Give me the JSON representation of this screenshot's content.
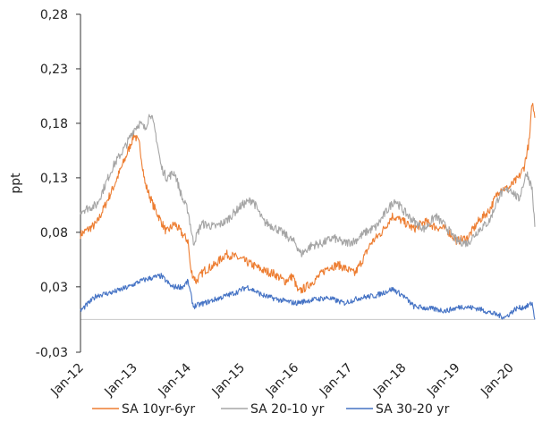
{
  "chart_data": {
    "type": "line",
    "ylabel": "ppt",
    "xlabel": "",
    "ylim": [
      -0.03,
      0.28
    ],
    "yticks": [
      -0.03,
      0.03,
      0.08,
      0.13,
      0.18,
      0.23,
      0.28
    ],
    "ytick_labels": [
      "-0,03",
      "0,03",
      "0,08",
      "0,13",
      "0,18",
      "0,23",
      "0,28"
    ],
    "xlim": [
      2012.0,
      2020.45
    ],
    "xticks": [
      2012,
      2013,
      2014,
      2015,
      2016,
      2017,
      2018,
      2019,
      2020
    ],
    "xtick_labels": [
      "Jan-12",
      "Jan-13",
      "Jan-14",
      "Jan-15",
      "Jan-16",
      "Jan-17",
      "Jan-18",
      "Jan-19",
      "Jan-20"
    ],
    "legend_position": "bottom",
    "baseline": 0,
    "baseline_color": "#c8c8c8",
    "series": [
      {
        "name": "SA 10yr-6yr",
        "color": "#ed7d31",
        "x": [
          2012.0,
          2012.3,
          2012.6,
          2012.85,
          2013.0,
          2013.1,
          2013.2,
          2013.35,
          2013.5,
          2013.6,
          2013.75,
          2013.9,
          2014.0,
          2014.05,
          2014.15,
          2014.3,
          2014.5,
          2014.7,
          2014.85,
          2015.0,
          2015.2,
          2015.4,
          2015.6,
          2015.8,
          2015.95,
          2016.05,
          2016.2,
          2016.4,
          2016.6,
          2016.8,
          2017.0,
          2017.1,
          2017.25,
          2017.4,
          2017.6,
          2017.8,
          2018.0,
          2018.2,
          2018.4,
          2018.6,
          2018.8,
          2019.0,
          2019.2,
          2019.4,
          2019.6,
          2019.8,
          2019.95,
          2020.05,
          2020.15,
          2020.25,
          2020.35,
          2020.4,
          2020.45
        ],
        "y": [
          0.078,
          0.088,
          0.12,
          0.15,
          0.17,
          0.16,
          0.125,
          0.105,
          0.09,
          0.08,
          0.088,
          0.078,
          0.072,
          0.045,
          0.035,
          0.045,
          0.05,
          0.06,
          0.058,
          0.055,
          0.05,
          0.045,
          0.042,
          0.035,
          0.04,
          0.025,
          0.03,
          0.038,
          0.048,
          0.05,
          0.045,
          0.042,
          0.055,
          0.07,
          0.08,
          0.095,
          0.09,
          0.083,
          0.09,
          0.085,
          0.083,
          0.072,
          0.075,
          0.09,
          0.1,
          0.12,
          0.12,
          0.125,
          0.13,
          0.14,
          0.165,
          0.2,
          0.185
        ]
      },
      {
        "name": "SA 20-10 yr",
        "color": "#a5a5a5",
        "x": [
          2012.0,
          2012.3,
          2012.6,
          2012.85,
          2013.0,
          2013.1,
          2013.2,
          2013.3,
          2013.4,
          2013.5,
          2013.6,
          2013.75,
          2013.9,
          2014.0,
          2014.1,
          2014.25,
          2014.5,
          2014.7,
          2014.9,
          2015.0,
          2015.2,
          2015.4,
          2015.6,
          2015.8,
          2016.0,
          2016.1,
          2016.3,
          2016.5,
          2016.7,
          2016.9,
          2017.1,
          2017.3,
          2017.5,
          2017.7,
          2017.85,
          2018.0,
          2018.2,
          2018.4,
          2018.6,
          2018.8,
          2019.0,
          2019.2,
          2019.4,
          2019.6,
          2019.8,
          2020.0,
          2020.15,
          2020.3,
          2020.4,
          2020.45
        ],
        "y": [
          0.1,
          0.105,
          0.14,
          0.16,
          0.175,
          0.18,
          0.175,
          0.19,
          0.17,
          0.14,
          0.13,
          0.135,
          0.11,
          0.1,
          0.07,
          0.088,
          0.085,
          0.09,
          0.1,
          0.105,
          0.11,
          0.09,
          0.085,
          0.078,
          0.07,
          0.06,
          0.068,
          0.07,
          0.075,
          0.07,
          0.072,
          0.08,
          0.085,
          0.1,
          0.11,
          0.1,
          0.09,
          0.083,
          0.095,
          0.085,
          0.072,
          0.07,
          0.082,
          0.09,
          0.115,
          0.12,
          0.11,
          0.135,
          0.12,
          0.085
        ]
      },
      {
        "name": "SA 30-20 yr",
        "color": "#4472c4",
        "x": [
          2012.0,
          2012.3,
          2012.6,
          2012.9,
          2013.1,
          2013.3,
          2013.5,
          2013.7,
          2013.9,
          2014.0,
          2014.1,
          2014.3,
          2014.6,
          2014.9,
          2015.1,
          2015.4,
          2015.7,
          2016.0,
          2016.3,
          2016.6,
          2016.9,
          2017.2,
          2017.5,
          2017.8,
          2018.0,
          2018.2,
          2018.5,
          2018.8,
          2019.1,
          2019.4,
          2019.7,
          2019.9,
          2020.1,
          2020.3,
          2020.4,
          2020.45
        ],
        "y": [
          0.008,
          0.022,
          0.025,
          0.03,
          0.035,
          0.038,
          0.04,
          0.03,
          0.03,
          0.035,
          0.012,
          0.015,
          0.02,
          0.025,
          0.03,
          0.022,
          0.018,
          0.015,
          0.018,
          0.02,
          0.015,
          0.02,
          0.022,
          0.028,
          0.022,
          0.012,
          0.01,
          0.008,
          0.012,
          0.01,
          0.005,
          0.002,
          0.01,
          0.012,
          0.015,
          0.0
        ]
      }
    ]
  }
}
